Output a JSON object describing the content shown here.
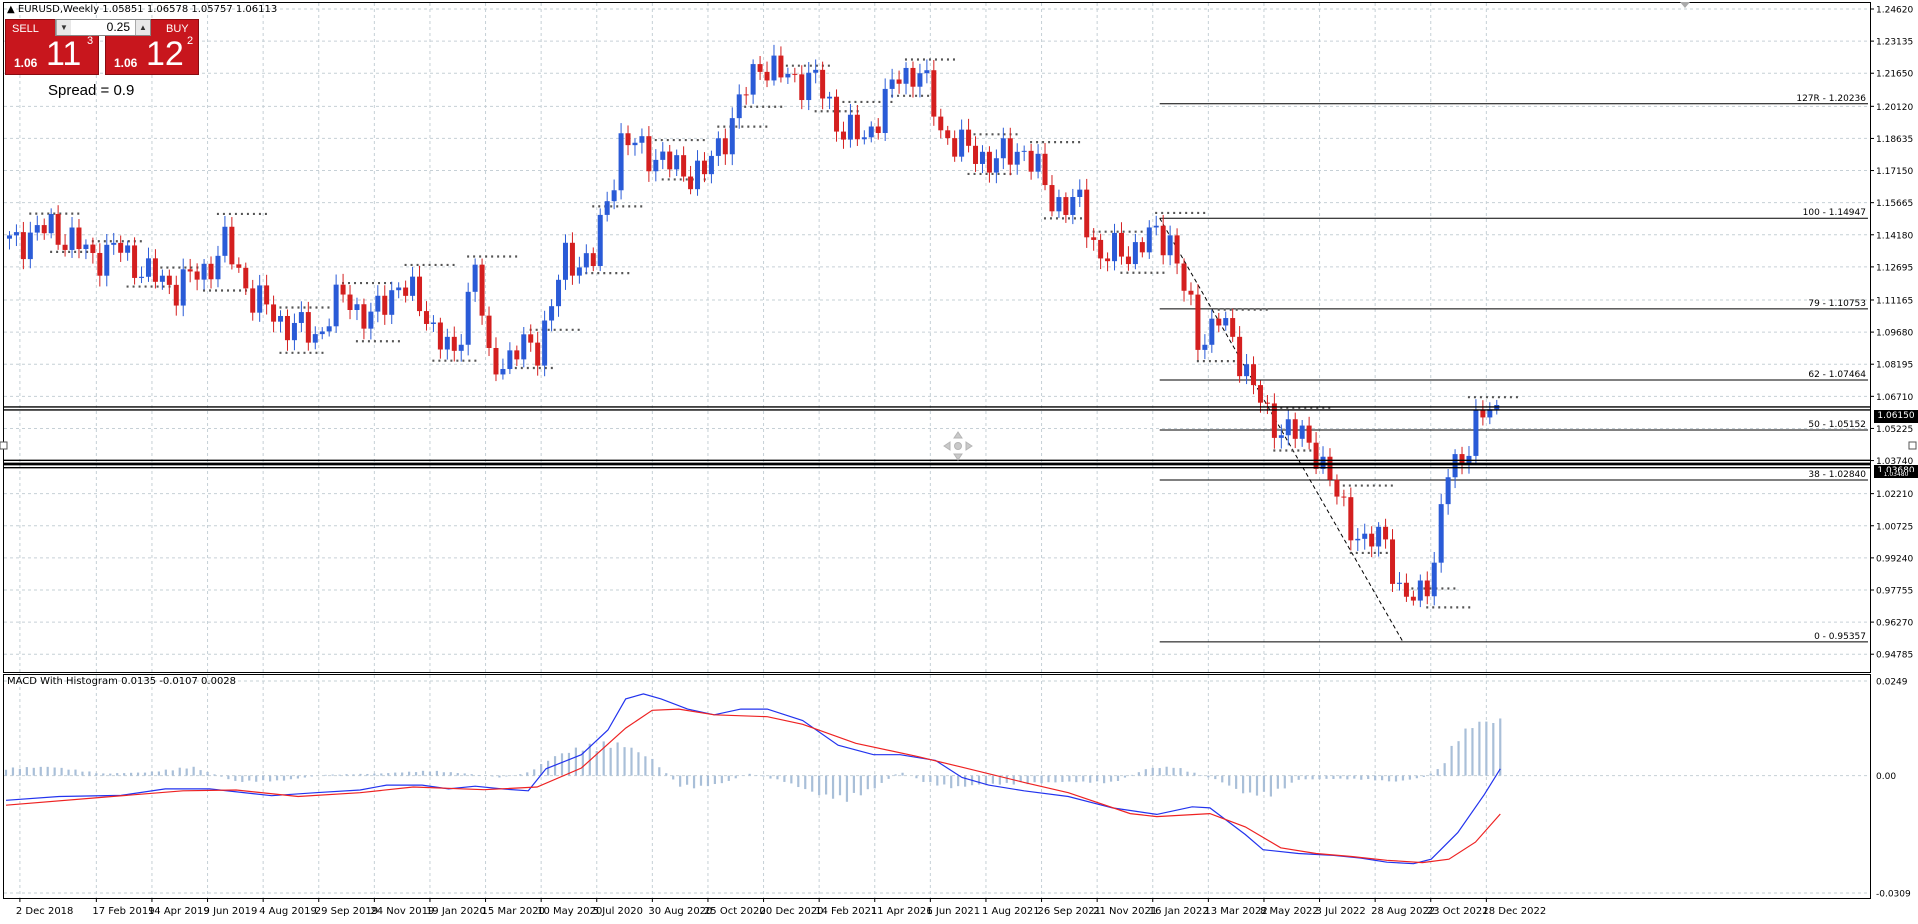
{
  "chart_title": "EURUSD,Weekly  1.05851 1.06578 1.05757 1.06113",
  "macd_title": "MACD With Histogram 0.0135 -0.0107 0.0028",
  "trade_panel": {
    "sell_label": "SELL",
    "buy_label": "BUY",
    "lot_value": "0.25",
    "sell_small": "1.06",
    "sell_big": "11",
    "sell_sup": "3",
    "buy_small": "1.06",
    "buy_big": "12",
    "buy_sup": "2",
    "spread_text": "Spread = 0.9"
  },
  "price_tags": {
    "current": "1.06150",
    "support": "1.03680",
    "support_under": "1.03480"
  },
  "colors": {
    "bull": "#2a5bd7",
    "bear": "#d41f1f",
    "grid": "#c6d0d6",
    "macd_line": "#2233ee",
    "signal_line": "#ee2222",
    "histogram": "#a9bfd8",
    "sell_button": "#c8161d"
  },
  "chart_data": [
    {
      "type": "candlestick",
      "title": "EURUSD,Weekly",
      "price_axis": {
        "ylim": [
          0.9424,
          1.2462
        ],
        "ticks": [
          "1.24620",
          "1.23135",
          "1.21650",
          "1.20120",
          "1.18635",
          "1.17150",
          "1.15665",
          "1.14180",
          "1.12695",
          "1.11165",
          "1.09680",
          "1.08195",
          "1.06710",
          "1.05225",
          "1.03740",
          "1.02210",
          "1.00725",
          "0.99240",
          "0.97755",
          "0.96270",
          "0.94785"
        ]
      },
      "x_axis": {
        "start_date": "2018-11-18",
        "ticks": [
          "2 Dec 2018",
          "17 Feb 2019",
          "14 Apr 2019",
          "9 Jun 2019",
          "4 Aug 2019",
          "29 Sep 2019",
          "24 Nov 2019",
          "19 Jan 2020",
          "15 Mar 2020",
          "10 May 2020",
          "5 Jul 2020",
          "30 Aug 2020",
          "25 Oct 2020",
          "20 Dec 2020",
          "14 Feb 2021",
          "11 Apr 2021",
          "6 Jun 2021",
          "1 Aug 2021",
          "26 Sep 2021",
          "21 Nov 2021",
          "16 Jan 2022",
          "13 Mar 2022",
          "8 May 2022",
          "3 Jul 2022",
          "28 Aug 2022",
          "23 Oct 2022",
          "18 Dec 2022"
        ]
      },
      "series_points": [
        [
          "2018-11-18",
          1.137
        ],
        [
          "2019-01-06",
          1.145
        ],
        [
          "2019-02-17",
          1.132
        ],
        [
          "2019-03-17",
          1.135
        ],
        [
          "2019-04-14",
          1.123
        ],
        [
          "2019-05-12",
          1.118
        ],
        [
          "2019-06-09",
          1.125
        ],
        [
          "2019-06-30",
          1.137
        ],
        [
          "2019-07-28",
          1.113
        ],
        [
          "2019-08-25",
          1.102
        ],
        [
          "2019-09-29",
          1.095
        ],
        [
          "2019-10-27",
          1.114
        ],
        [
          "2019-11-24",
          1.102
        ],
        [
          "2019-12-22",
          1.12
        ],
        [
          "2020-01-19",
          1.105
        ],
        [
          "2020-02-16",
          1.083
        ],
        [
          "2020-03-08",
          1.13
        ],
        [
          "2020-03-22",
          1.08
        ],
        [
          "2020-04-19",
          1.088
        ],
        [
          "2020-05-10",
          1.09
        ],
        [
          "2020-06-07",
          1.13
        ],
        [
          "2020-07-05",
          1.13
        ],
        [
          "2020-08-02",
          1.185
        ],
        [
          "2020-08-30",
          1.18
        ],
        [
          "2020-09-27",
          1.172
        ],
        [
          "2020-10-25",
          1.17
        ],
        [
          "2020-11-22",
          1.195
        ],
        [
          "2020-12-20",
          1.222
        ],
        [
          "2021-01-10",
          1.215
        ],
        [
          "2021-02-14",
          1.213
        ],
        [
          "2021-03-14",
          1.19
        ],
        [
          "2021-04-04",
          1.186
        ],
        [
          "2021-05-09",
          1.215
        ],
        [
          "2021-05-30",
          1.218
        ],
        [
          "2021-06-20",
          1.19
        ],
        [
          "2021-07-18",
          1.18
        ],
        [
          "2021-08-15",
          1.176
        ],
        [
          "2021-09-12",
          1.182
        ],
        [
          "2021-10-10",
          1.158
        ],
        [
          "2021-11-07",
          1.155
        ],
        [
          "2021-11-28",
          1.132
        ],
        [
          "2021-12-26",
          1.134
        ],
        [
          "2022-01-16",
          1.14
        ],
        [
          "2022-02-06",
          1.141
        ],
        [
          "2022-03-06",
          1.093
        ],
        [
          "2022-03-27",
          1.103
        ],
        [
          "2022-04-24",
          1.08
        ],
        [
          "2022-05-15",
          1.056
        ],
        [
          "2022-06-05",
          1.052
        ],
        [
          "2022-07-03",
          1.043
        ],
        [
          "2022-07-24",
          1.02
        ],
        [
          "2022-08-21",
          0.998
        ],
        [
          "2022-09-11",
          1.003
        ],
        [
          "2022-09-25",
          0.975
        ],
        [
          "2022-10-09",
          0.972
        ],
        [
          "2022-10-30",
          0.99
        ],
        [
          "2022-11-13",
          1.032
        ],
        [
          "2022-11-27",
          1.04
        ],
        [
          "2022-12-11",
          1.053
        ],
        [
          "2022-12-25",
          1.061
        ]
      ]
    },
    {
      "type": "line",
      "title": "MACD With Histogram",
      "ylim": [
        -0.0309,
        0.0249
      ],
      "ticks": [
        "0.0249",
        "0.00",
        "-0.0309"
      ],
      "series": [
        {
          "name": "MACD",
          "points": [
            [
              0,
              -0.0065
            ],
            [
              60,
              -0.0055
            ],
            [
              130,
              -0.0052
            ],
            [
              180,
              -0.0035
            ],
            [
              230,
              -0.0035
            ],
            [
              300,
              -0.0053
            ],
            [
              350,
              -0.0045
            ],
            [
              400,
              -0.0038
            ],
            [
              430,
              -0.0025
            ],
            [
              470,
              -0.0025
            ],
            [
              500,
              -0.0035
            ],
            [
              530,
              -0.0028
            ],
            [
              560,
              -0.0035
            ],
            [
              590,
              -0.004
            ],
            [
              610,
              0.0018
            ],
            [
              650,
              0.0055
            ],
            [
              680,
              0.012
            ],
            [
              700,
              0.0202
            ],
            [
              720,
              0.0215
            ],
            [
              740,
              0.0202
            ],
            [
              770,
              0.0175
            ],
            [
              800,
              0.016
            ],
            [
              830,
              0.0175
            ],
            [
              860,
              0.0175
            ],
            [
              900,
              0.0145
            ],
            [
              940,
              0.008
            ],
            [
              980,
              0.0055
            ],
            [
              1010,
              0.0055
            ],
            [
              1050,
              0.004
            ],
            [
              1080,
              -0.0005
            ],
            [
              1110,
              -0.0025
            ],
            [
              1150,
              -0.004
            ],
            [
              1200,
              -0.0055
            ],
            [
              1250,
              -0.0085
            ],
            [
              1300,
              -0.0102
            ],
            [
              1340,
              -0.0082
            ],
            [
              1360,
              -0.0085
            ],
            [
              1400,
              -0.0155
            ],
            [
              1420,
              -0.0195
            ],
            [
              1460,
              -0.0205
            ],
            [
              1500,
              -0.021
            ],
            [
              1530,
              -0.0217
            ],
            [
              1560,
              -0.0228
            ],
            [
              1590,
              -0.0232
            ],
            [
              1610,
              -0.022
            ],
            [
              1640,
              -0.015
            ],
            [
              1670,
              -0.005
            ],
            [
              1688,
              0.0018
            ]
          ]
        },
        {
          "name": "Signal",
          "points": [
            [
              0,
              -0.0078
            ],
            [
              120,
              -0.0055
            ],
            [
              200,
              -0.004
            ],
            [
              260,
              -0.0038
            ],
            [
              330,
              -0.0055
            ],
            [
              400,
              -0.0045
            ],
            [
              460,
              -0.003
            ],
            [
              540,
              -0.0037
            ],
            [
              600,
              -0.003
            ],
            [
              650,
              0.002
            ],
            [
              700,
              0.0125
            ],
            [
              730,
              0.0172
            ],
            [
              760,
              0.0175
            ],
            [
              800,
              0.016
            ],
            [
              860,
              0.0155
            ],
            [
              900,
              0.0135
            ],
            [
              960,
              0.0085
            ],
            [
              1030,
              0.005
            ],
            [
              1080,
              0.0022
            ],
            [
              1150,
              -0.0018
            ],
            [
              1200,
              -0.0045
            ],
            [
              1270,
              -0.01
            ],
            [
              1300,
              -0.0108
            ],
            [
              1360,
              -0.01
            ],
            [
              1400,
              -0.0135
            ],
            [
              1440,
              -0.019
            ],
            [
              1480,
              -0.0205
            ],
            [
              1520,
              -0.0213
            ],
            [
              1560,
              -0.0223
            ],
            [
              1600,
              -0.0229
            ],
            [
              1630,
              -0.022
            ],
            [
              1660,
              -0.0175
            ],
            [
              1688,
              -0.0101
            ]
          ]
        },
        {
          "name": "Histogram",
          "type": "bar",
          "points": [
            [
              0,
              0.0018
            ],
            [
              50,
              0.0022
            ],
            [
              110,
              0.0005
            ],
            [
              160,
              0.0008
            ],
            [
              210,
              0.0022
            ],
            [
              260,
              -0.0015
            ],
            [
              310,
              -0.0013
            ],
            [
              360,
              0.0002
            ],
            [
              420,
              0.0005
            ],
            [
              480,
              0.0012
            ],
            [
              520,
              0.0005
            ],
            [
              560,
              -0.0005
            ],
            [
              590,
              0.0008
            ],
            [
              620,
              0.0048
            ],
            [
              650,
              0.007
            ],
            [
              680,
              0.008
            ],
            [
              700,
              0.0075
            ],
            [
              730,
              0.004
            ],
            [
              760,
              -0.0025
            ],
            [
              780,
              -0.003
            ],
            [
              810,
              -0.0018
            ],
            [
              840,
              0.0005
            ],
            [
              880,
              -0.0015
            ],
            [
              920,
              -0.0048
            ],
            [
              950,
              -0.006
            ],
            [
              980,
              -0.0032
            ],
            [
              1010,
              0.001
            ],
            [
              1040,
              -0.0018
            ],
            [
              1070,
              -0.003
            ],
            [
              1100,
              -0.0022
            ],
            [
              1150,
              -0.002
            ],
            [
              1200,
              -0.0015
            ],
            [
              1250,
              -0.0018
            ],
            [
              1290,
              0.0018
            ],
            [
              1320,
              0.0022
            ],
            [
              1370,
              -0.0012
            ],
            [
              1400,
              -0.0045
            ],
            [
              1430,
              -0.0048
            ],
            [
              1460,
              -0.001
            ],
            [
              1500,
              -0.0008
            ],
            [
              1540,
              -0.001
            ],
            [
              1570,
              -0.0015
            ],
            [
              1600,
              -0.0005
            ],
            [
              1620,
              0.0018
            ],
            [
              1640,
              0.0095
            ],
            [
              1660,
              0.013
            ],
            [
              1680,
              0.0135
            ]
          ]
        }
      ]
    }
  ],
  "fibonacci_levels": [
    {
      "label": "127R - 1.20236",
      "value": 1.20236
    },
    {
      "label": "100 - 1.14947",
      "value": 1.14947
    },
    {
      "label": "79 - 1.10753",
      "value": 1.10753
    },
    {
      "label": "62 - 1.07464",
      "value": 1.07464
    },
    {
      "label": "50 - 1.05152",
      "value": 1.05152
    },
    {
      "label": "38 - 1.02840",
      "value": 1.0284
    },
    {
      "label": "0 - 0.95357",
      "value": 0.95357
    }
  ],
  "horizontal_lines": [
    {
      "name": "current-price-line",
      "value": 1.0615
    },
    {
      "name": "support-line",
      "value": 1.0368
    },
    {
      "name": "support-line-lower",
      "value": 1.0348
    }
  ]
}
